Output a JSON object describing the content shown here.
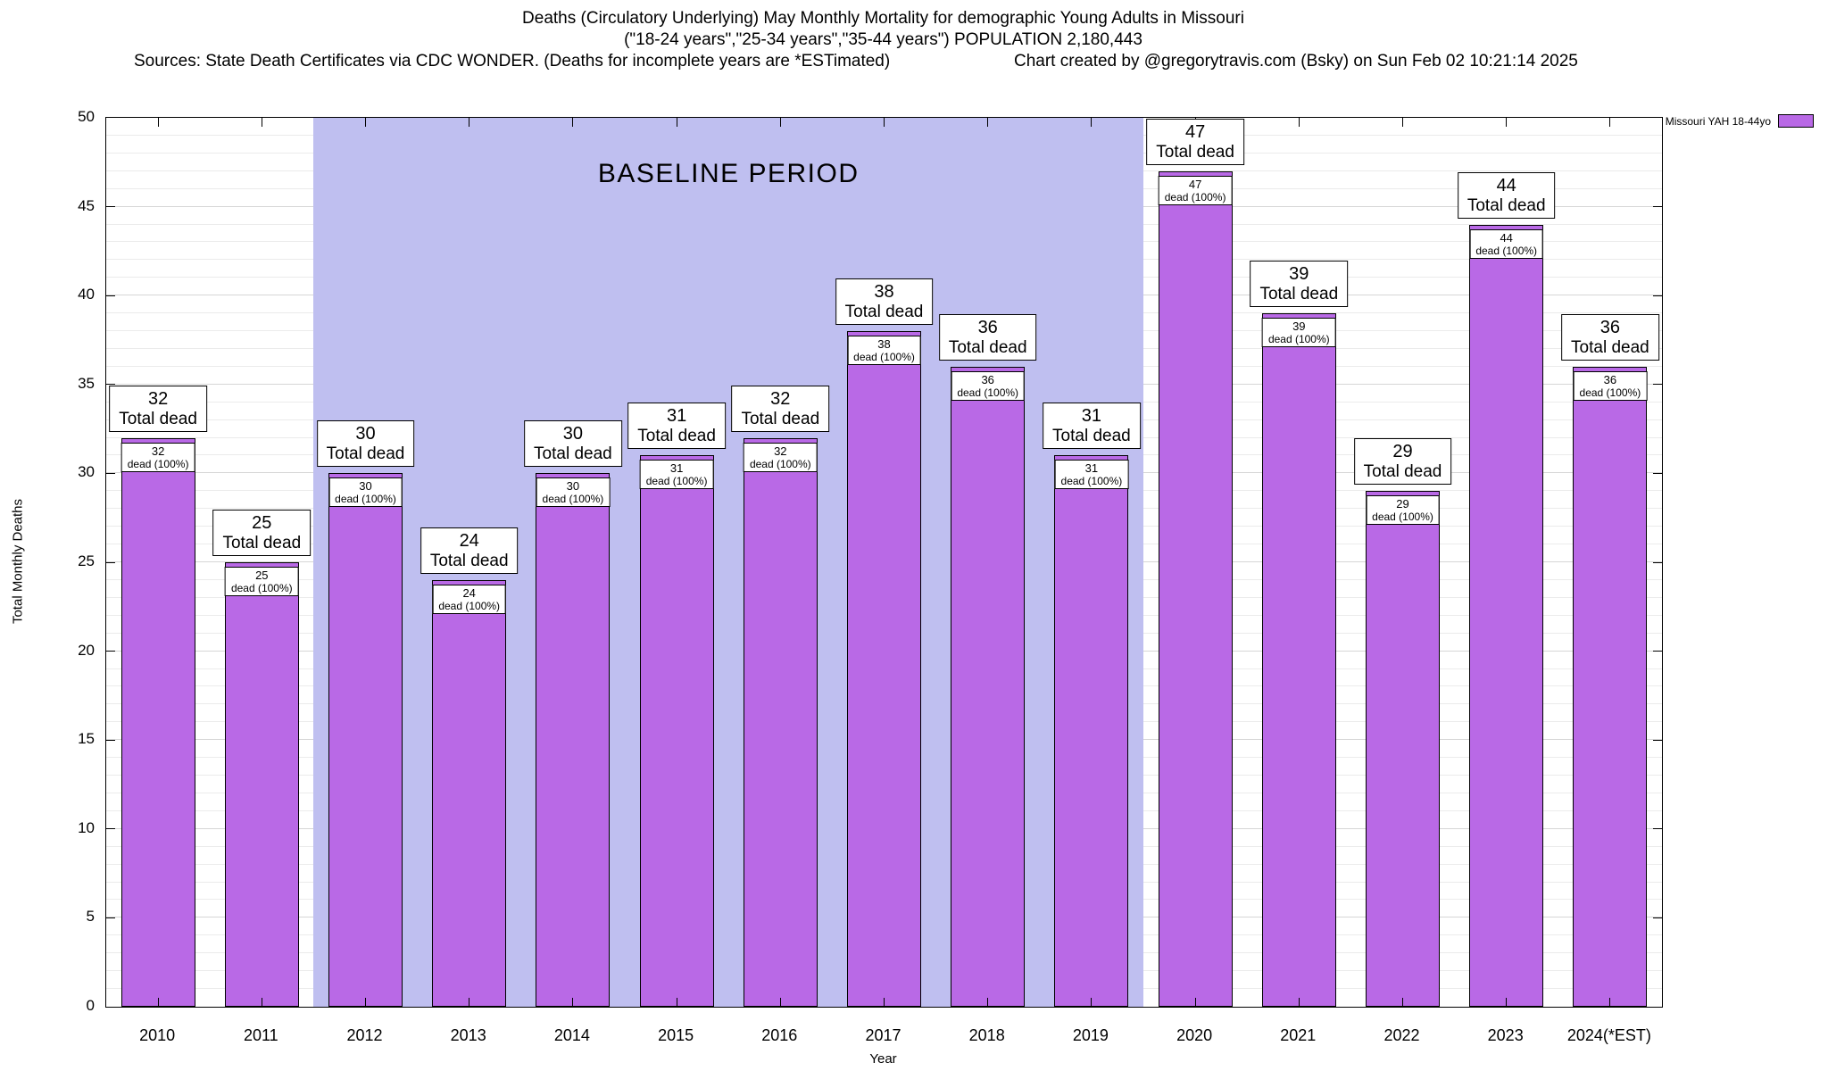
{
  "header": {
    "title_line1": "Deaths (Circulatory Underlying) May Monthly Mortality for demographic Young Adults in Missouri",
    "title_line2": "(\"18-24 years\",\"25-34 years\",\"35-44 years\") POPULATION 2,180,443",
    "sources": "Sources: State Death Certificates via CDC WONDER. (Deaths for incomplete years are *ESTimated)",
    "credit": "Chart created by @gregorytravis.com (Bsky) on Sun Feb 02 10:21:14 2025"
  },
  "chart_data": {
    "type": "bar",
    "title": "Deaths (Circulatory Underlying) May Monthly Mortality for demographic Young Adults in Missouri",
    "subtitle": "(\"18-24 years\",\"25-34 years\",\"35-44 years\") POPULATION 2,180,443",
    "categories": [
      "2010",
      "2011",
      "2012",
      "2013",
      "2014",
      "2015",
      "2016",
      "2017",
      "2018",
      "2019",
      "2020",
      "2021",
      "2022",
      "2023",
      "2024(*EST)"
    ],
    "values": [
      32,
      25,
      30,
      24,
      30,
      31,
      32,
      38,
      36,
      31,
      47,
      39,
      29,
      44,
      36
    ],
    "xlabel": "Year",
    "ylabel": "Total Monthly Deaths",
    "ylim": [
      0,
      50
    ],
    "ytick_step": 5,
    "minor_grid_step": 1,
    "grid": true,
    "bar_color": "#b969e6",
    "bar_border_color": "#000000",
    "bar_label_suffix": "Total dead",
    "bar_inner_label_suffix": "dead (100%)",
    "baseline_region": {
      "label": "BASELINE PERIOD",
      "from_category": "2012",
      "to_category": "2019",
      "color": "#bfbff0"
    },
    "legend": [
      {
        "label": "Missouri YAH 18-44yo",
        "color": "#b969e6"
      }
    ],
    "legend_position": "top-right-outside"
  }
}
